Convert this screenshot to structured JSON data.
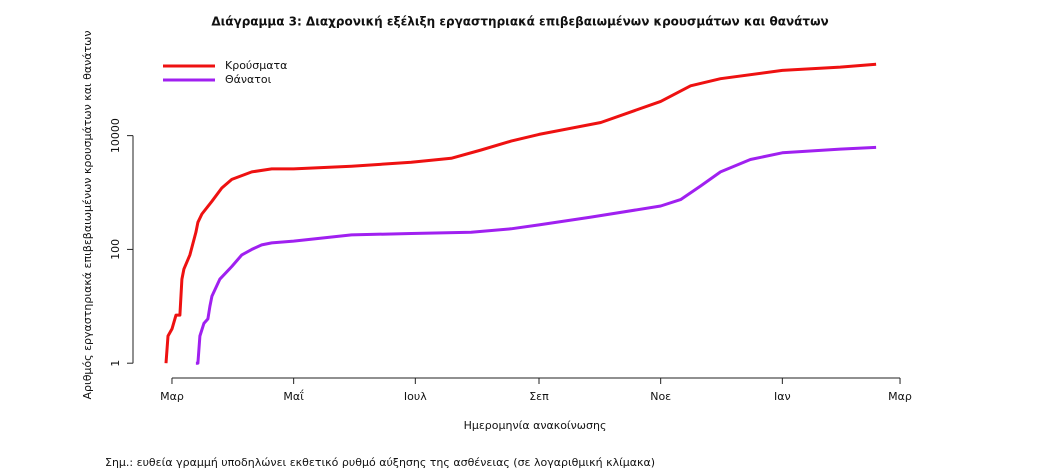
{
  "chart_data": {
    "type": "line",
    "title": "Διάγραμμα 3: Διαχρονική εξέλιξη εργαστηριακά επιβεβαιωμένων κρουσμάτων και θανάτων",
    "x_label": "Ημερομηνία ανακοίνωσης",
    "y_label": "Αριθμός εργαστηριακά επιβεβαιωμένων κρουσμάτων και θανάτων",
    "note": "Σημ.: ευθεία γραμμή υποδηλώνει εκθετικό ρυθμό αύξησης της ασθένειας (σε λογαριθμική κλίμακα)",
    "log_y": true,
    "legend": "top-left",
    "xlim": [
      -6,
      372
    ],
    "xticks": [
      {
        "value": 0,
        "label": "Μαρ"
      },
      {
        "value": 61,
        "label": "Μαΐ"
      },
      {
        "value": 122,
        "label": "Ιουλ"
      },
      {
        "value": 184,
        "label": "Σεπ"
      },
      {
        "value": 245,
        "label": "Νοε"
      },
      {
        "value": 306,
        "label": "Ιαν"
      },
      {
        "value": 365,
        "label": "Μαρ"
      }
    ],
    "ylim": [
      0.7,
      320000
    ],
    "yticks": [
      1,
      100,
      10000
    ],
    "series": [
      {
        "name": "Κρούσματα",
        "color": "#ee1111",
        "x": [
          -3,
          -2,
          0,
          2,
          4,
          5,
          6,
          9,
          12,
          13,
          15,
          20,
          25,
          30,
          40,
          50,
          61,
          90,
          120,
          140,
          155,
          170,
          184,
          215,
          245,
          260,
          275,
          306,
          335,
          353
        ],
        "values": [
          1,
          3,
          4,
          7,
          7,
          30,
          45,
          80,
          200,
          300,
          420,
          700,
          1200,
          1700,
          2300,
          2600,
          2600,
          2900,
          3400,
          4000,
          5600,
          8000,
          10500,
          17000,
          40000,
          75000,
          100000,
          140000,
          160000,
          180000
        ]
      },
      {
        "name": "Θάνατοι",
        "color": "#a020f0",
        "x": [
          12,
          13,
          14,
          16,
          18,
          19,
          20,
          24,
          30,
          35,
          40,
          45,
          50,
          61,
          90,
          120,
          150,
          170,
          184,
          210,
          245,
          255,
          265,
          275,
          290,
          306,
          335,
          353
        ],
        "values": [
          1,
          1,
          3,
          5,
          6,
          10,
          15,
          30,
          50,
          80,
          100,
          120,
          130,
          140,
          180,
          190,
          200,
          230,
          270,
          370,
          580,
          750,
          1300,
          2300,
          3800,
          5000,
          5800,
          6200
        ]
      }
    ]
  }
}
